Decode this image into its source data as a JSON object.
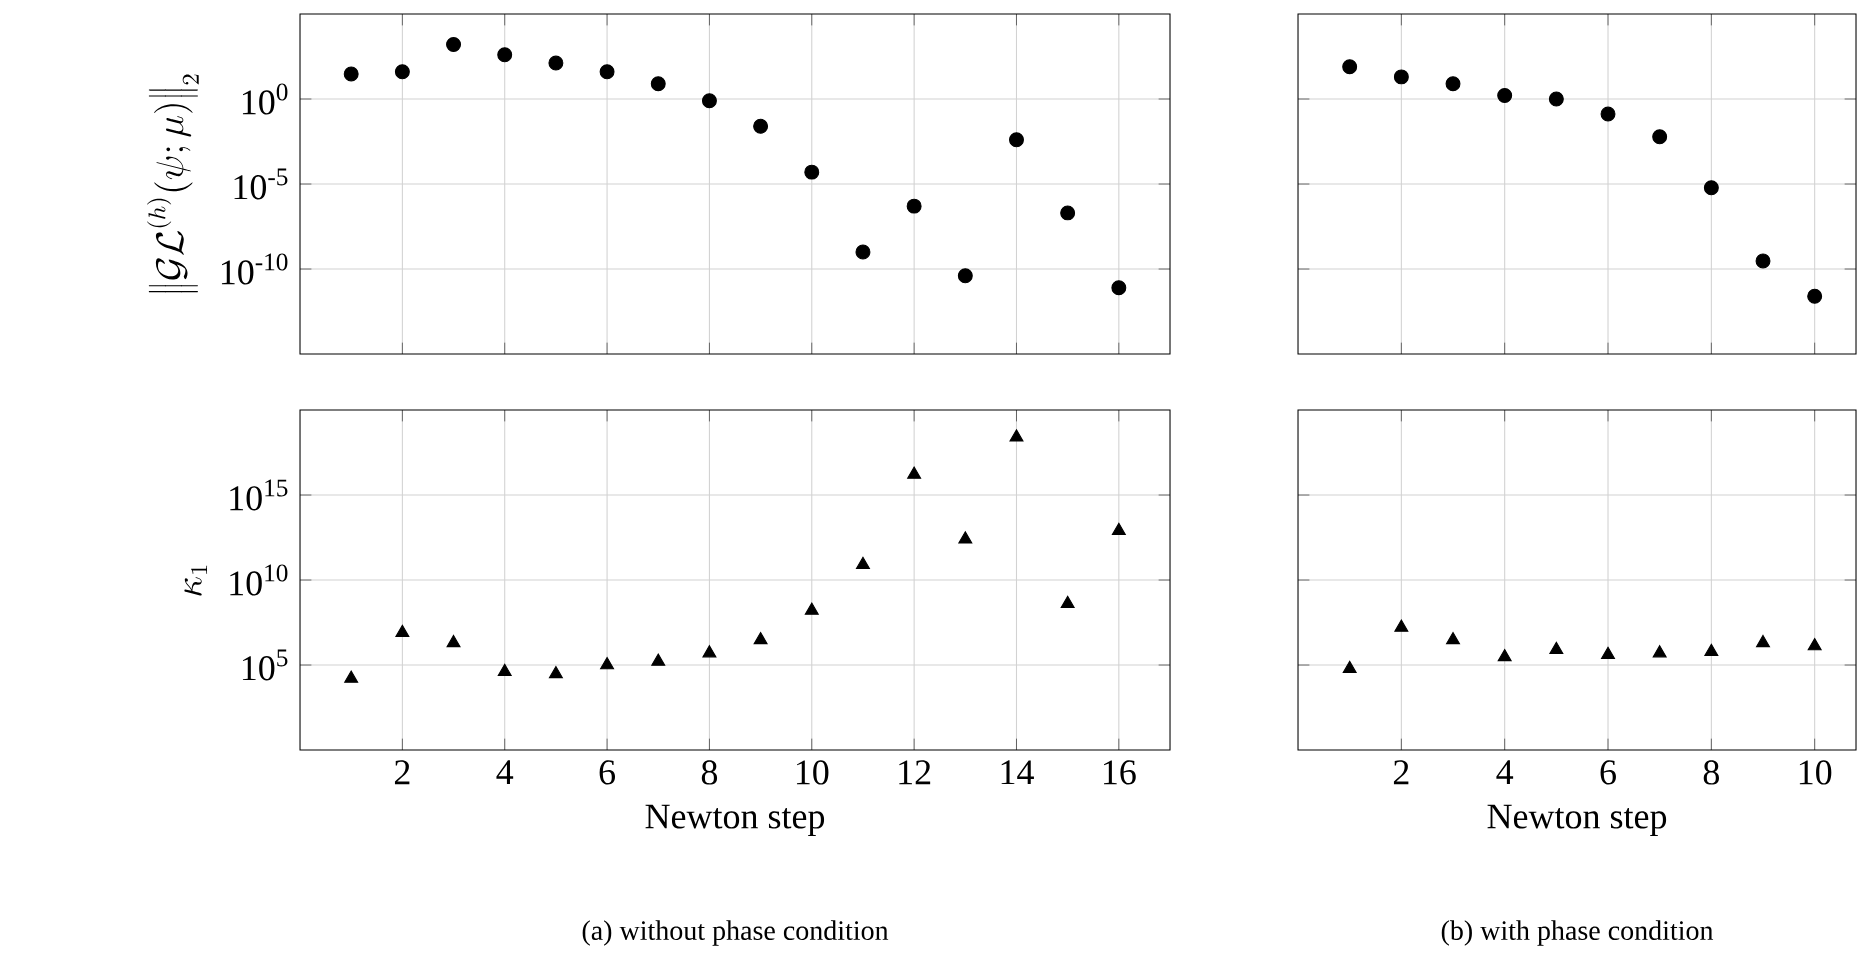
{
  "chart_data": [
    {
      "type": "scatter",
      "marker": "circle",
      "log": "y",
      "grid": true,
      "tick_labels": "y",
      "ylabel": "\\left\\|\\mathcal{GL}^{(h)}(\\psi;\\mu)\\right\\|_2",
      "x": [
        1,
        2,
        3,
        4,
        5,
        6,
        7,
        8,
        9,
        10,
        11,
        12,
        13,
        14,
        15,
        16
      ],
      "xlim": [
        0,
        17
      ],
      "xticks": [
        2,
        4,
        6,
        8,
        10,
        12,
        14,
        16
      ],
      "ylim": [
        1e-15,
        100000.0
      ],
      "yticks": [
        {
          "value": 1e-10,
          "label": "10$^{-10}$"
        },
        {
          "value": 1e-05,
          "label": "10$^{-5}$"
        },
        {
          "value": 1,
          "label": "10$^{0}$"
        }
      ],
      "series": [
        {
          "color": "#000000",
          "values": [
            30,
            40,
            1600,
            400,
            130,
            40,
            8,
            0.8,
            0.025,
            5e-05,
            1e-09,
            5e-07,
            4e-11,
            0.004,
            2e-07,
            8e-12
          ]
        }
      ]
    },
    {
      "type": "scatter",
      "marker": "circle",
      "log": "y",
      "grid": true,
      "tick_labels": false,
      "x": [
        1,
        2,
        3,
        4,
        5,
        6,
        7,
        8,
        9,
        10
      ],
      "xlim": [
        0,
        10.8
      ],
      "xticks": [
        2,
        4,
        6,
        8,
        10
      ],
      "ylim": [
        1e-15,
        100000.0
      ],
      "yticks": [
        {
          "value": 1e-10,
          "label": null
        },
        {
          "value": 1e-05,
          "label": null
        },
        {
          "value": 1,
          "label": null
        }
      ],
      "series": [
        {
          "color": "#000000",
          "values": [
            80,
            20,
            8,
            1.6,
            1,
            0.13,
            0.006,
            6e-06,
            3e-10,
            2.5e-12
          ]
        }
      ]
    },
    {
      "type": "scatter",
      "marker": "triangle",
      "log": "y",
      "grid": true,
      "ylabel": "\\kappa_1",
      "xlabel": "Newton step",
      "annotations": [
        "(a) without phase condition"
      ],
      "x": [
        1,
        2,
        3,
        4,
        5,
        6,
        7,
        8,
        9,
        10,
        11,
        12,
        13,
        14,
        15,
        16
      ],
      "xlim": [
        0,
        17
      ],
      "xticks": [
        2,
        4,
        6,
        8,
        10,
        12,
        14,
        16
      ],
      "ylim": [
        1,
        1e+20
      ],
      "yticks": [
        {
          "value": 100000.0,
          "label": "10$^{5}$"
        },
        {
          "value": 10000000000.0,
          "label": "10$^{10}$"
        },
        {
          "value": 1000000000000000.0,
          "label": "10$^{15}$"
        }
      ],
      "series": [
        {
          "color": "#000000",
          "values": [
            16000.0,
            8000000.0,
            2000000.0,
            40000.0,
            30000.0,
            100000.0,
            160000.0,
            500000.0,
            3000000.0,
            160000000.0,
            80000000000.0,
            1.6e+16,
            2500000000000.0,
            2.5e+18,
            400000000.0,
            8000000000000.0
          ]
        }
      ]
    },
    {
      "type": "scatter",
      "marker": "triangle",
      "log": "y",
      "grid": true,
      "tick_labels": "x",
      "xlabel": "Newton step",
      "annotations": [
        "(b) with phase condition"
      ],
      "x": [
        1,
        2,
        3,
        4,
        5,
        6,
        7,
        8,
        9,
        10
      ],
      "xlim": [
        0,
        10.8
      ],
      "xticks": [
        2,
        4,
        6,
        8,
        10
      ],
      "ylim": [
        1,
        1e+20
      ],
      "yticks": [
        {
          "value": 100000.0,
          "label": null
        },
        {
          "value": 10000000000.0,
          "label": null
        },
        {
          "value": 1000000000000000.0,
          "label": null
        }
      ],
      "series": [
        {
          "color": "#000000",
          "values": [
            60000.0,
            16000000.0,
            3000000.0,
            300000.0,
            800000.0,
            400000.0,
            500000.0,
            600000.0,
            2000000.0,
            1300000.0
          ]
        }
      ]
    }
  ]
}
